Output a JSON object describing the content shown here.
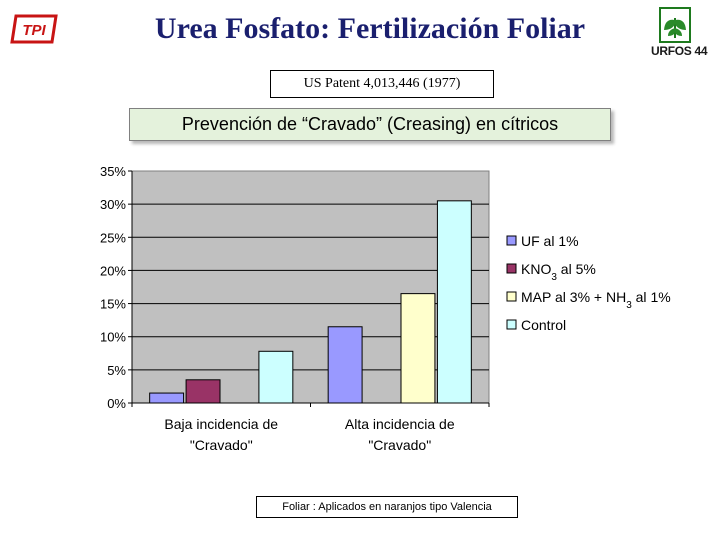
{
  "header": {
    "title": "Urea Fosfato: Fertilización Foliar",
    "patent": "US Patent  4,013,446 (1977)",
    "logo_left": "TPI",
    "logo_right": "URFOS 44"
  },
  "colors": {
    "title": "#1a1f6e",
    "subtitle_bg": "#e4f2dc",
    "plot_bg": "#c0c0c0"
  },
  "chart_data": {
    "type": "bar",
    "title": "Prevención de “Cravado” (Creasing) en cítricos",
    "categories": [
      [
        "Baja incidencia de",
        "\"Cravado\""
      ],
      [
        "Alta incidencia de",
        "\"Cravado\""
      ]
    ],
    "series": [
      {
        "name": "UF al 1%",
        "color": "#9999ff",
        "values": [
          1.5,
          11.5
        ]
      },
      {
        "name": "KNO3 al 5%",
        "color": "#993366",
        "values": [
          3.5,
          null
        ]
      },
      {
        "name": "MAP al 3% + NH3 al 1%",
        "color": "#ffffcc",
        "values": [
          null,
          16.5
        ]
      },
      {
        "name": "Control",
        "color": "#ccffff",
        "values": [
          7.8,
          30.5
        ]
      }
    ],
    "ylim": [
      0,
      35
    ],
    "yticks": [
      "0%",
      "5%",
      "10%",
      "15%",
      "20%",
      "25%",
      "30%",
      "35%"
    ],
    "grid": true,
    "legend_position": "right"
  },
  "footnote": "Foliar : Aplicados en naranjos tipo Valencia"
}
